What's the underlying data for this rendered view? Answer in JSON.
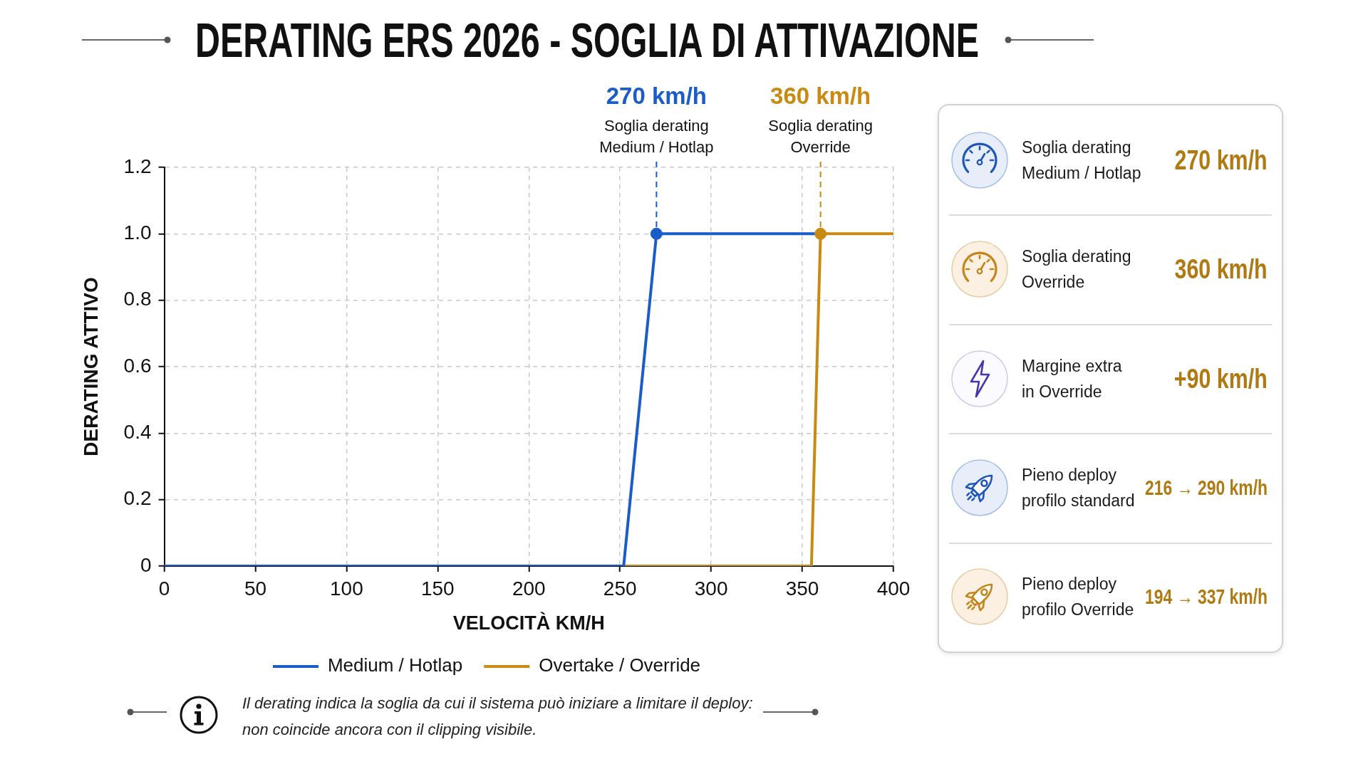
{
  "chart_data": [
    {
      "type": "line",
      "title": "DERATING ERS 2026 - SOGLIA DI ATTIVAZIONE",
      "xlabel": "VELOCITÀ KM/H",
      "ylabel": "DERATING ATTIVO",
      "series": [
        {
          "name": "Medium / Hotlap",
          "color": "#1a5cc8",
          "x": [
            0,
            252,
            270,
            360
          ],
          "values": [
            0,
            0,
            1,
            1
          ]
        },
        {
          "name": "Overtake / Override",
          "color": "#c98a14",
          "x": [
            252,
            355,
            360,
            400
          ],
          "values": [
            0,
            0,
            1,
            1
          ]
        },
        {
          "type": "scatter",
          "color": "#1a5cc8",
          "marker": "circle",
          "x": [
            270
          ],
          "values": [
            1
          ]
        },
        {
          "type": "scatter",
          "color": "#c98a14",
          "marker": "circle",
          "x": [
            360
          ],
          "values": [
            1
          ]
        }
      ],
      "xlim": [
        0,
        400
      ],
      "xticks": [
        0,
        50,
        100,
        150,
        200,
        250,
        300,
        350,
        400
      ],
      "ylim": [
        0,
        1.2
      ],
      "yticks": [
        0,
        0.2,
        0.4,
        0.6,
        0.8,
        {
          "value": 1,
          "label": "1.0"
        },
        1.2
      ],
      "grid": true,
      "legend": "bottom",
      "ref_lines": [
        {
          "axis": "x",
          "value": 270,
          "label": "270 km/h\nSoglia derating\nMedium / Hotlap",
          "color": "#1a5cc8",
          "line_style": "dashed"
        },
        {
          "axis": "x",
          "value": 360,
          "label": "360 km/h\nSoglia derating\nOverride",
          "color": "#c98a14",
          "line_style": "dashed"
        }
      ],
      "annotations": [
        "Il derating indica la soglia da cui il sistema può iniziare a limitare il deploy:\nnon coincide ancora con il clipping visibile."
      ]
    },
    {
      "type": "other",
      "annotations": [
        "Soglia derating\nMedium / Hotlap",
        "270 km/h",
        "Soglia derating\nOverride",
        "360 km/h",
        "Margine extra\nin Override",
        "+90 km/h",
        "Pieno deploy\nprofilo standard",
        "216 → 290 km/h",
        "Pieno deploy\nprofilo Override",
        "194 → 337 km/h"
      ]
    }
  ]
}
